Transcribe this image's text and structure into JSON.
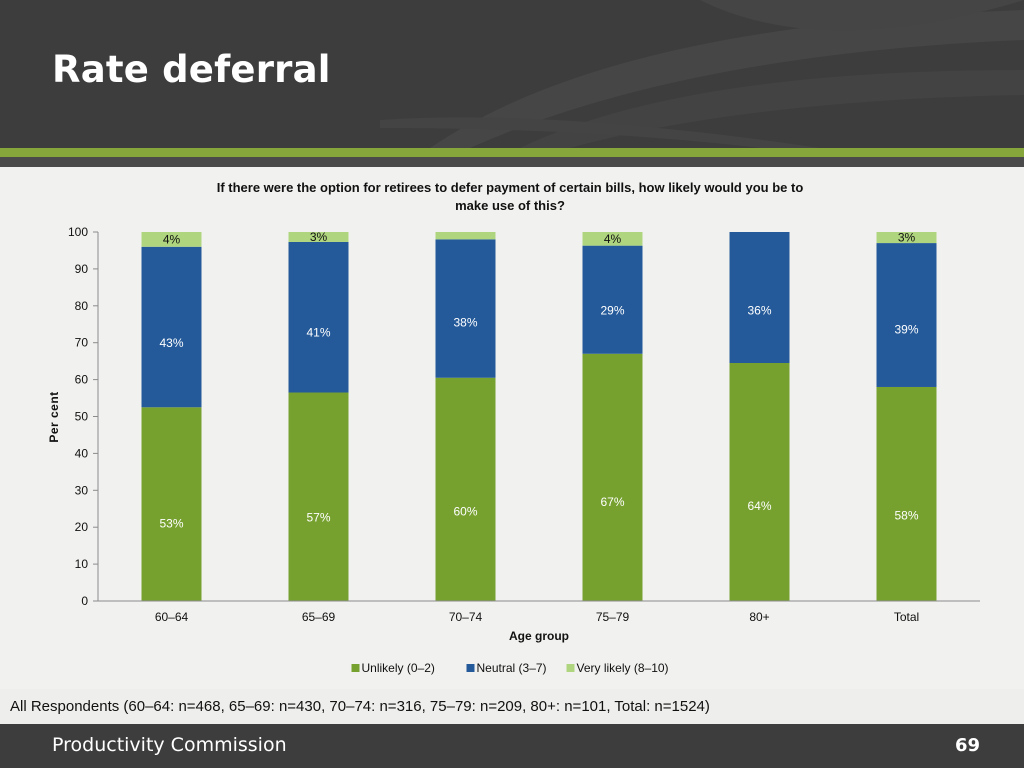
{
  "slide": {
    "title": "Rate deferral",
    "footnote": "All Respondents (60–64: n=468, 65–69: n=430, 70–74: n=316, 75–79: n=209, 80+: n=101, Total: n=1524)",
    "organization": "Productivity Commission",
    "page_number": "69"
  },
  "colors": {
    "header_bg": "#3d3d3d",
    "accent_green": "#86a53a",
    "unlikely": "#76a12f",
    "neutral": "#245a9a",
    "very_likely": "#afd67f"
  },
  "chart_data": {
    "type": "bar",
    "stacked": true,
    "title": "If there were the option for retirees to defer payment of certain bills, how likely would you be to make use of this?",
    "xlabel": "Age group",
    "ylabel": "Per cent",
    "ylim": [
      0,
      100
    ],
    "yticks": [
      0,
      10,
      20,
      30,
      40,
      50,
      60,
      70,
      80,
      90,
      100
    ],
    "grid": false,
    "legend_position": "bottom",
    "categories": [
      "60–64",
      "65–69",
      "70–74",
      "75–79",
      "80+",
      "Total"
    ],
    "series": [
      {
        "name": "Unlikely (0–2)",
        "color": "#76a12f",
        "values": [
          52.5,
          56.5,
          60.5,
          67,
          64.5,
          58
        ],
        "labels": [
          "53%",
          "57%",
          "60%",
          "67%",
          "64%",
          "58%"
        ]
      },
      {
        "name": "Neutral (3–7)",
        "color": "#245a9a",
        "values": [
          43.5,
          40.8,
          37.5,
          29.3,
          35.5,
          39
        ],
        "labels": [
          "43%",
          "41%",
          "38%",
          "29%",
          "36%",
          "39%"
        ]
      },
      {
        "name": "Very likely (8–10)",
        "color": "#afd67f",
        "values": [
          4,
          2.7,
          2,
          3.7,
          0,
          3
        ],
        "labels": [
          "4%",
          "3%",
          "",
          "4%",
          "",
          "3%"
        ]
      }
    ]
  }
}
